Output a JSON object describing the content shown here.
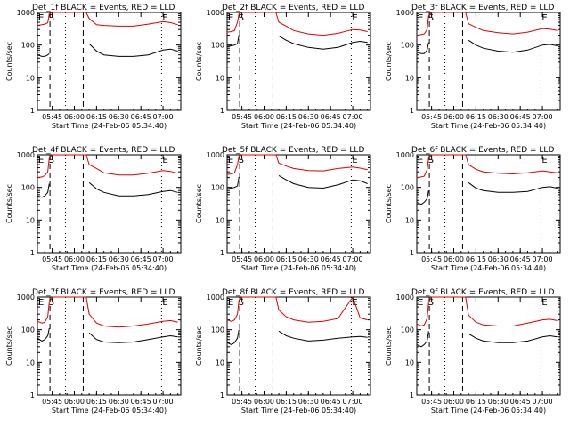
{
  "figure": {
    "y_axis_label": "Counts/sec",
    "x_axis_label": "Start Time (24-Feb-06 05:34:40)",
    "y_tick_labels": [
      "1",
      "10",
      "100",
      "1000"
    ],
    "x_tick_labels": [
      "05:45",
      "06:00",
      "06:15",
      "06:30",
      "06:45",
      "07:00"
    ],
    "legend_text": "BLACK = Events, RED = LLD",
    "marker_E": "E",
    "marker_S": "S",
    "colors": {
      "events": "#000000",
      "lld": "#dd0000"
    }
  },
  "chart_data": [
    {
      "type": "line",
      "title": "Det_1f BLACK = Events, RED = LLD",
      "xlabel": "Start Time (24-Feb-06 05:34:40)",
      "ylabel": "Counts/sec",
      "ylim": [
        1,
        1000
      ],
      "yscale": "log",
      "x": [
        "05:35",
        "05:38",
        "05:40",
        "05:42",
        "05:43",
        "05:45",
        "05:50",
        "06:00",
        "06:08",
        "06:10",
        "06:15",
        "06:20",
        "06:30",
        "06:40",
        "06:50",
        "07:00",
        "07:05",
        "07:10"
      ],
      "series": [
        {
          "name": "LLD",
          "values": [
            400,
            420,
            440,
            480,
            900,
            1000,
            1000,
            1000,
            1000,
            650,
            420,
            400,
            380,
            380,
            440,
            520,
            490,
            420
          ]
        },
        {
          "name": "Events",
          "values": [
            50,
            45,
            45,
            50,
            55,
            null,
            null,
            null,
            null,
            110,
            65,
            50,
            45,
            45,
            50,
            70,
            75,
            65
          ]
        }
      ],
      "markers": [
        {
          "label": "E",
          "x": "05:35"
        },
        {
          "label": "S",
          "x": "05:42"
        },
        {
          "label": "E",
          "x": "06:59"
        }
      ]
    },
    {
      "type": "line",
      "title": "Det_2f BLACK = Events, RED = LLD",
      "xlabel": "Start Time (24-Feb-06 05:34:40)",
      "ylabel": "Counts/sec",
      "ylim": [
        1,
        1000
      ],
      "yscale": "log",
      "x": [
        "05:35",
        "05:38",
        "05:40",
        "05:42",
        "05:43",
        "05:45",
        "05:50",
        "06:00",
        "06:08",
        "06:10",
        "06:15",
        "06:20",
        "06:30",
        "06:40",
        "06:50",
        "07:00",
        "07:05",
        "07:10"
      ],
      "series": [
        {
          "name": "LLD",
          "values": [
            250,
            260,
            280,
            500,
            900,
            1000,
            1000,
            1000,
            1000,
            500,
            380,
            280,
            220,
            200,
            230,
            300,
            290,
            260
          ]
        },
        {
          "name": "Events",
          "values": [
            90,
            95,
            100,
            110,
            200,
            null,
            null,
            null,
            null,
            190,
            140,
            110,
            85,
            75,
            85,
            120,
            130,
            120
          ]
        }
      ],
      "markers": [
        {
          "label": "E",
          "x": "05:35"
        },
        {
          "label": "S",
          "x": "05:42"
        },
        {
          "label": "E",
          "x": "06:59"
        }
      ]
    },
    {
      "type": "line",
      "title": "Det_3f BLACK = Events, RED = LLD",
      "xlabel": "Start Time (24-Feb-06 05:34:40)",
      "ylabel": "Counts/sec",
      "ylim": [
        1,
        1000
      ],
      "yscale": "log",
      "x": [
        "05:35",
        "05:38",
        "05:40",
        "05:42",
        "05:43",
        "05:45",
        "05:50",
        "06:00",
        "06:08",
        "06:10",
        "06:15",
        "06:20",
        "06:30",
        "06:40",
        "06:50",
        "07:00",
        "07:05",
        "07:10"
      ],
      "series": [
        {
          "name": "LLD",
          "values": [
            200,
            210,
            220,
            300,
            800,
            1000,
            1000,
            1000,
            1000,
            450,
            350,
            280,
            240,
            220,
            250,
            320,
            310,
            280
          ]
        },
        {
          "name": "Events",
          "values": [
            60,
            55,
            55,
            70,
            120,
            null,
            null,
            null,
            null,
            140,
            100,
            80,
            65,
            60,
            70,
            100,
            105,
            95
          ]
        }
      ],
      "markers": [
        {
          "label": "E",
          "x": "05:35"
        },
        {
          "label": "S",
          "x": "05:42"
        },
        {
          "label": "E",
          "x": "06:59"
        }
      ]
    },
    {
      "type": "line",
      "title": "Det_4f BLACK = Events, RED = LLD",
      "xlabel": "Start Time (24-Feb-06 05:34:40)",
      "ylabel": "Counts/sec",
      "ylim": [
        1,
        1000
      ],
      "yscale": "log",
      "x": [
        "05:35",
        "05:38",
        "05:40",
        "05:42",
        "05:43",
        "05:45",
        "05:50",
        "06:00",
        "06:08",
        "06:10",
        "06:15",
        "06:20",
        "06:30",
        "06:40",
        "06:50",
        "07:00",
        "07:05",
        "07:10"
      ],
      "series": [
        {
          "name": "LLD",
          "values": [
            200,
            210,
            230,
            300,
            800,
            1000,
            1000,
            1000,
            1000,
            500,
            380,
            280,
            240,
            240,
            270,
            330,
            310,
            270
          ]
        },
        {
          "name": "Events",
          "values": [
            55,
            50,
            55,
            70,
            130,
            null,
            null,
            null,
            null,
            140,
            90,
            70,
            55,
            55,
            60,
            75,
            80,
            70
          ]
        }
      ],
      "markers": [
        {
          "label": "E",
          "x": "05:35"
        },
        {
          "label": "S",
          "x": "05:42"
        },
        {
          "label": "E",
          "x": "06:59"
        }
      ]
    },
    {
      "type": "line",
      "title": "Det_5f BLACK = Events, RED = LLD",
      "xlabel": "Start Time (24-Feb-06 05:34:40)",
      "ylabel": "Counts/sec",
      "ylim": [
        1,
        1000
      ],
      "yscale": "log",
      "x": [
        "05:35",
        "05:38",
        "05:40",
        "05:42",
        "05:43",
        "05:45",
        "05:50",
        "06:00",
        "06:08",
        "06:10",
        "06:15",
        "06:20",
        "06:30",
        "06:40",
        "06:50",
        "07:00",
        "07:05",
        "07:10"
      ],
      "series": [
        {
          "name": "LLD",
          "values": [
            250,
            260,
            280,
            500,
            900,
            1000,
            1000,
            1000,
            1000,
            550,
            450,
            380,
            330,
            320,
            380,
            420,
            390,
            350
          ]
        },
        {
          "name": "Events",
          "values": [
            90,
            95,
            100,
            110,
            210,
            null,
            null,
            null,
            null,
            230,
            170,
            130,
            100,
            95,
            120,
            170,
            160,
            130
          ]
        }
      ],
      "markers": [
        {
          "label": "E",
          "x": "05:35"
        },
        {
          "label": "S",
          "x": "05:42"
        },
        {
          "label": "E",
          "x": "06:59"
        }
      ]
    },
    {
      "type": "line",
      "title": "Det_6f BLACK = Events, RED = LLD",
      "xlabel": "Start Time (24-Feb-06 05:34:40)",
      "ylabel": "Counts/sec",
      "ylim": [
        1,
        1000
      ],
      "yscale": "log",
      "x": [
        "05:35",
        "05:38",
        "05:40",
        "05:42",
        "05:43",
        "05:45",
        "05:50",
        "06:00",
        "06:08",
        "06:10",
        "06:15",
        "06:20",
        "06:30",
        "06:40",
        "06:50",
        "07:00",
        "07:05",
        "07:10"
      ],
      "series": [
        {
          "name": "LLD",
          "values": [
            200,
            210,
            220,
            350,
            800,
            1000,
            1000,
            1000,
            1000,
            500,
            360,
            300,
            270,
            260,
            280,
            320,
            300,
            280
          ]
        },
        {
          "name": "Events",
          "values": [
            35,
            30,
            35,
            45,
            80,
            null,
            null,
            null,
            null,
            140,
            95,
            80,
            70,
            70,
            75,
            100,
            105,
            95
          ]
        }
      ],
      "markers": [
        {
          "label": "E",
          "x": "05:35"
        },
        {
          "label": "S",
          "x": "05:42"
        },
        {
          "label": "E",
          "x": "06:59"
        }
      ]
    },
    {
      "type": "line",
      "title": "Det_7f BLACK = Events, RED = LLD",
      "xlabel": "Start Time (24-Feb-06 05:34:40)",
      "ylabel": "Counts/sec",
      "ylim": [
        1,
        1000
      ],
      "yscale": "log",
      "x": [
        "05:35",
        "05:38",
        "05:40",
        "05:42",
        "05:43",
        "05:45",
        "05:50",
        "06:00",
        "06:08",
        "06:10",
        "06:15",
        "06:20",
        "06:30",
        "06:40",
        "06:50",
        "07:00",
        "07:05",
        "07:10"
      ],
      "series": [
        {
          "name": "LLD",
          "values": [
            180,
            160,
            170,
            250,
            700,
            1000,
            1000,
            1000,
            1000,
            300,
            160,
            130,
            120,
            130,
            150,
            180,
            190,
            170
          ]
        },
        {
          "name": "Events",
          "values": [
            55,
            45,
            50,
            65,
            110,
            null,
            null,
            null,
            null,
            80,
            50,
            42,
            40,
            42,
            50,
            60,
            65,
            60
          ]
        }
      ],
      "markers": [
        {
          "label": "E",
          "x": "05:35"
        },
        {
          "label": "S",
          "x": "05:42"
        },
        {
          "label": "E",
          "x": "06:59"
        }
      ]
    },
    {
      "type": "line",
      "title": "Det_8f BLACK = Events, RED = LLD",
      "xlabel": "Start Time (24-Feb-06 05:34:40)",
      "ylabel": "Counts/sec",
      "ylim": [
        1,
        1000
      ],
      "yscale": "log",
      "x": [
        "05:35",
        "05:38",
        "05:40",
        "05:42",
        "05:43",
        "05:45",
        "05:50",
        "06:00",
        "06:08",
        "06:10",
        "06:15",
        "06:20",
        "06:30",
        "06:40",
        "06:50",
        "07:00",
        "07:05",
        "07:10"
      ],
      "series": [
        {
          "name": "LLD",
          "values": [
            200,
            180,
            200,
            300,
            800,
            1000,
            1000,
            1000,
            1000,
            400,
            250,
            200,
            170,
            180,
            220,
            1000,
            230,
            200
          ]
        },
        {
          "name": "Events",
          "values": [
            40,
            35,
            40,
            55,
            100,
            null,
            null,
            null,
            null,
            90,
            65,
            55,
            45,
            48,
            55,
            60,
            62,
            58
          ]
        }
      ],
      "markers": [
        {
          "label": "E",
          "x": "05:35"
        },
        {
          "label": "S",
          "x": "05:42"
        },
        {
          "label": "E",
          "x": "06:59"
        }
      ]
    },
    {
      "type": "line",
      "title": "Det_9f BLACK = Events, RED = LLD",
      "xlabel": "Start Time (24-Feb-06 05:34:40)",
      "ylabel": "Counts/sec",
      "ylim": [
        1,
        1000
      ],
      "yscale": "log",
      "x": [
        "05:35",
        "05:38",
        "05:40",
        "05:42",
        "05:43",
        "05:45",
        "05:50",
        "06:00",
        "06:08",
        "06:10",
        "06:15",
        "06:20",
        "06:30",
        "06:40",
        "06:50",
        "07:00",
        "07:05",
        "07:10"
      ],
      "series": [
        {
          "name": "LLD",
          "values": [
            150,
            130,
            140,
            220,
            700,
            1000,
            1000,
            1000,
            1000,
            280,
            170,
            140,
            130,
            130,
            160,
            200,
            210,
            190
          ]
        },
        {
          "name": "Events",
          "values": [
            35,
            30,
            35,
            45,
            90,
            null,
            null,
            null,
            null,
            75,
            55,
            45,
            40,
            40,
            45,
            60,
            65,
            60
          ]
        }
      ],
      "markers": [
        {
          "label": "E",
          "x": "05:35"
        },
        {
          "label": "S",
          "x": "05:42"
        },
        {
          "label": "E",
          "x": "06:59"
        }
      ]
    }
  ]
}
